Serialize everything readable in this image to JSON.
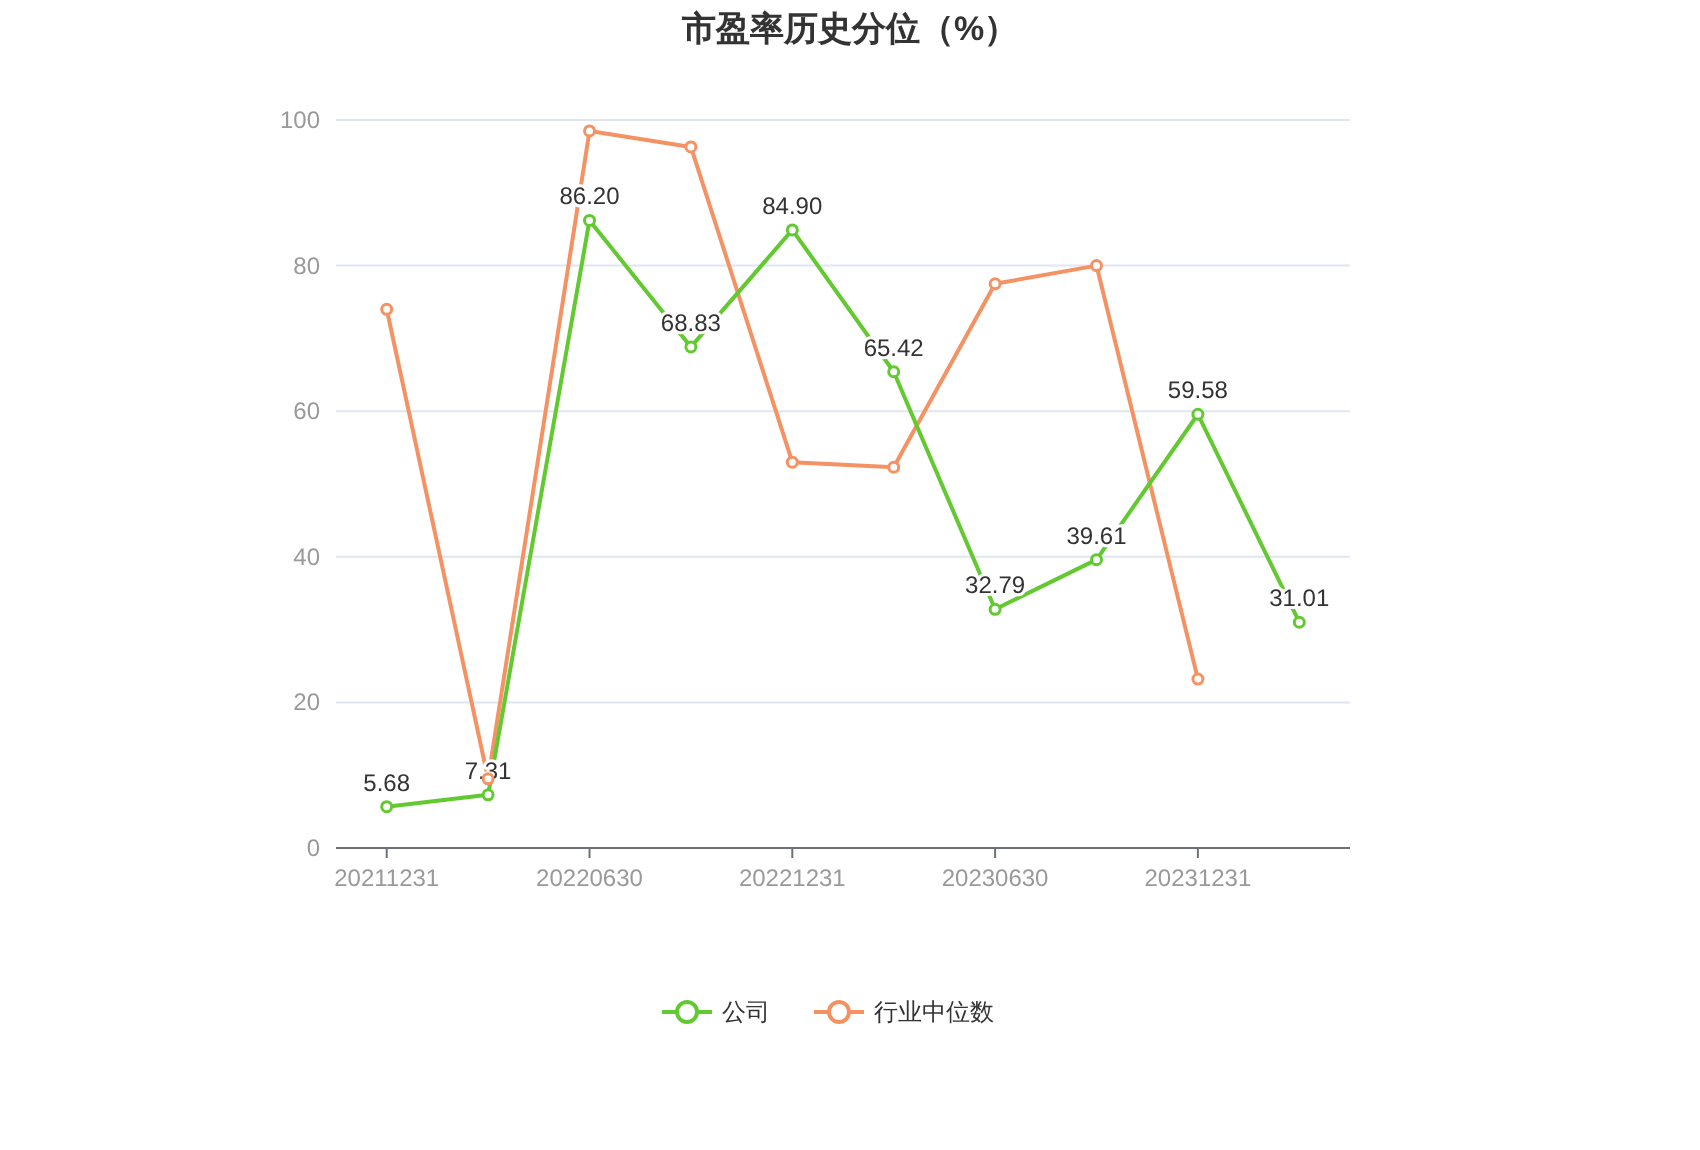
{
  "chart_data": {
    "type": "line",
    "title": "市盈率历史分位（%）",
    "categories": [
      "20211231",
      null,
      "20220630",
      null,
      "20221231",
      null,
      "20230630",
      null,
      "20231231",
      null
    ],
    "series": [
      {
        "name": "公司",
        "color": "#62c930",
        "values": [
          5.68,
          7.31,
          86.2,
          68.83,
          84.9,
          65.42,
          32.79,
          39.61,
          59.58,
          31.01
        ],
        "value_labels": [
          "5.68",
          "7.31",
          "86.20",
          "68.83",
          "84.90",
          "65.42",
          "32.79",
          "39.61",
          "59.58",
          "31.01"
        ]
      },
      {
        "name": "行业中位数",
        "color": "#f59263",
        "values": [
          74,
          9.5,
          98.5,
          96.3,
          53,
          52.3,
          77.5,
          80,
          23.2,
          null
        ]
      }
    ],
    "ylim": [
      0,
      100
    ],
    "yticks": [
      0,
      20,
      40,
      60,
      80,
      100
    ],
    "grid": "y",
    "legend": "bottom",
    "marker": "circle"
  }
}
